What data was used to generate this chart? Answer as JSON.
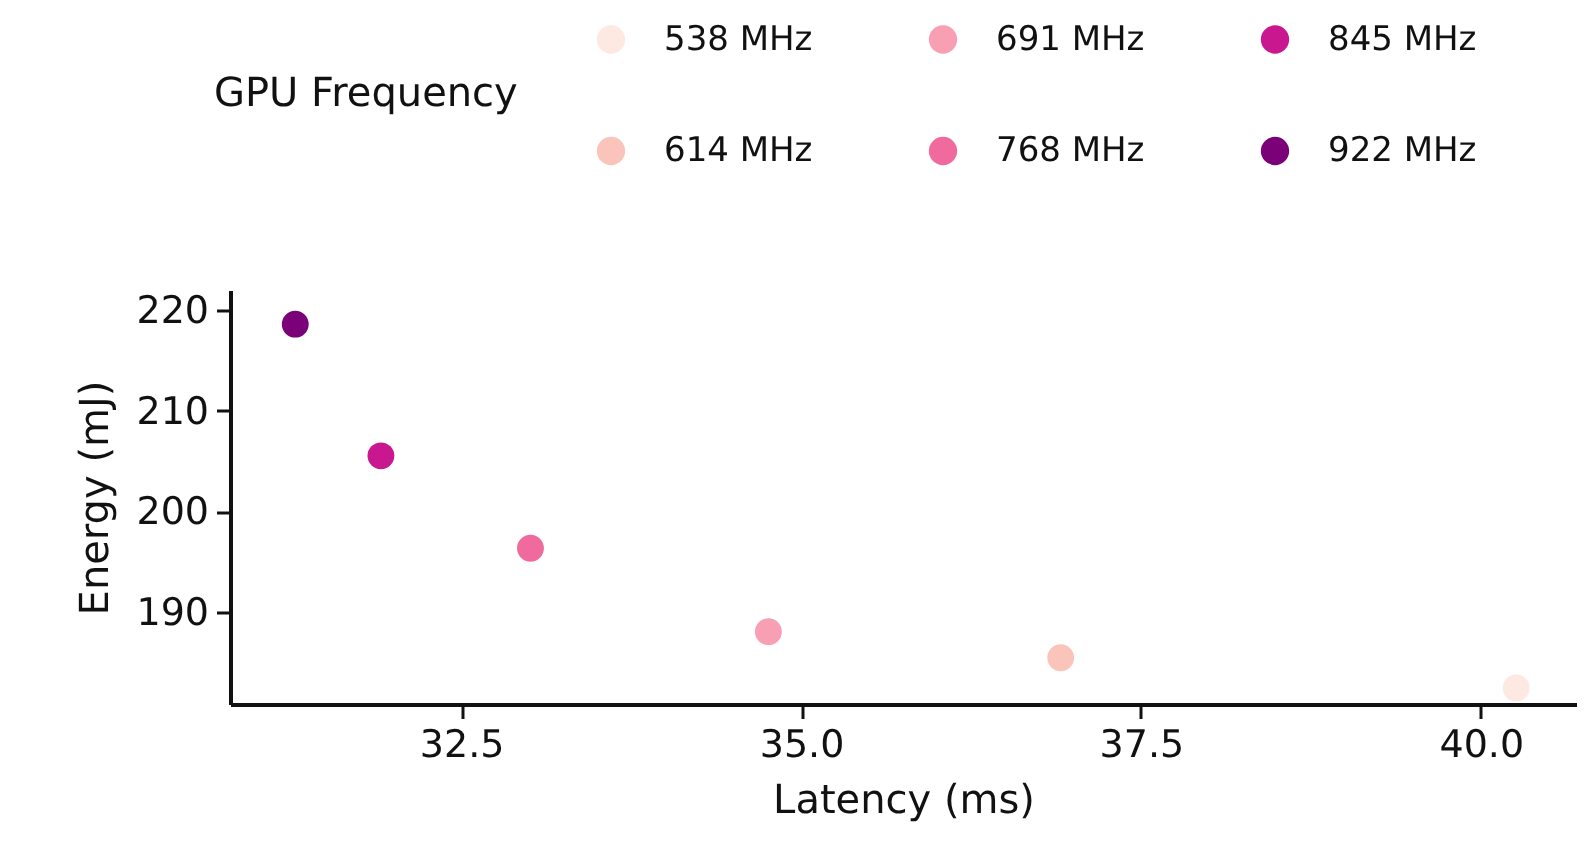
{
  "chart_data": {
    "type": "scatter",
    "xlabel": "Latency (ms)",
    "ylabel": "Energy (mJ)",
    "legend_title": "GPU Frequency",
    "legend": "top",
    "marker": "circle",
    "grid": false,
    "xlim": [
      30.8,
      40.7
    ],
    "xticks": [
      {
        "value": 32.5,
        "label": "32.5"
      },
      {
        "value": 35,
        "label": "35.0"
      },
      {
        "value": 37.5,
        "label": "37.5"
      },
      {
        "value": 40,
        "label": "40.0"
      }
    ],
    "ylim": [
      180.8,
      222
    ],
    "yticks": [
      190,
      200,
      210,
      220
    ],
    "series": [
      {
        "name": "538 MHz",
        "color": "#fde8e2",
        "x": [
          40.26
        ],
        "values": [
          182.4
        ]
      },
      {
        "name": "614 MHz",
        "color": "#fbc4bb",
        "x": [
          36.91
        ],
        "values": [
          185.4
        ]
      },
      {
        "name": "691 MHz",
        "color": "#f89fb3",
        "x": [
          34.76
        ],
        "values": [
          188.0
        ]
      },
      {
        "name": "768 MHz",
        "color": "#f06a9e",
        "x": [
          33.01
        ],
        "values": [
          196.3
        ]
      },
      {
        "name": "845 MHz",
        "color": "#c9178f",
        "x": [
          31.91
        ],
        "values": [
          205.5
        ]
      },
      {
        "name": "922 MHz",
        "color": "#7a0177",
        "x": [
          31.28
        ],
        "values": [
          218.6
        ]
      }
    ]
  }
}
